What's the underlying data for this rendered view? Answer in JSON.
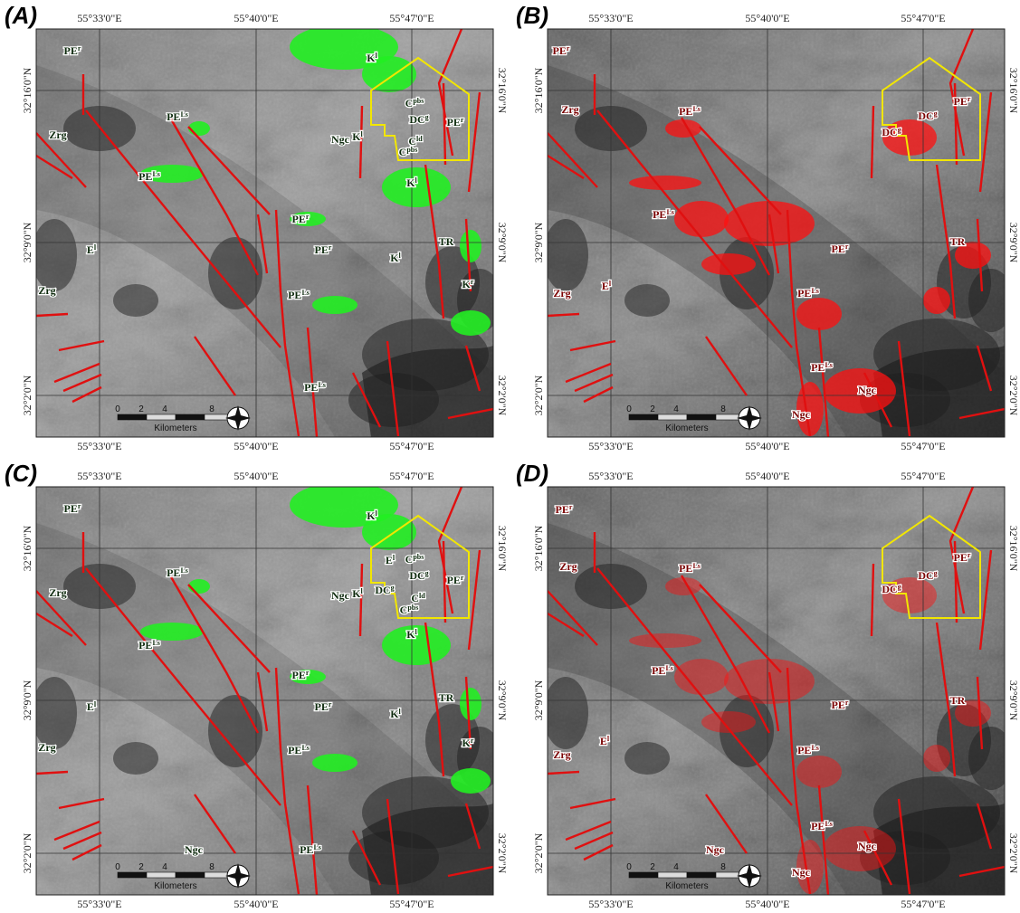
{
  "coords": {
    "lon": [
      "55°33'0\"E",
      "55°40'0\"E",
      "55°47'0\"E"
    ],
    "lat": [
      "32°16'0\"N",
      "32°9'0\"N",
      "32°2'0\"N"
    ]
  },
  "scale": {
    "ticks": [
      "0",
      "2",
      "4",
      "8"
    ],
    "unit": "Kilometers"
  },
  "panels": [
    {
      "label": "(A)",
      "units": [
        {
          "base": "PE",
          "sup": "r"
        },
        {
          "base": "K",
          "sup": "l"
        },
        {
          "base": "C",
          "sup": "pbs"
        },
        {
          "base": "PE",
          "sup": "r"
        },
        {
          "base": "Zrg"
        },
        {
          "base": "PE",
          "sup": "Ls"
        },
        {
          "base": "DC",
          "sup": "g"
        },
        {
          "base": "Ngc"
        },
        {
          "base": "K",
          "sup": "l"
        },
        {
          "base": "C",
          "sup": "ld"
        },
        {
          "base": "C",
          "sup": "pbs"
        },
        {
          "base": "PE",
          "sup": "Ls"
        },
        {
          "base": "K",
          "sup": "l"
        },
        {
          "base": "PE",
          "sup": "r"
        },
        {
          "base": "TR"
        },
        {
          "base": "PE",
          "sup": "r"
        },
        {
          "base": "K",
          "sup": "l"
        },
        {
          "base": "E",
          "sup": "l"
        },
        {
          "base": "K",
          "sup": "r"
        },
        {
          "base": "Zrg"
        },
        {
          "base": "PE",
          "sup": "Ls"
        },
        {
          "base": "PE",
          "sup": "Ls"
        }
      ]
    },
    {
      "label": "(B)",
      "units": [
        {
          "base": "PE",
          "sup": "r"
        },
        {
          "base": "Zrg"
        },
        {
          "base": "PE",
          "sup": "Ls"
        },
        {
          "base": "DC",
          "sup": "g"
        },
        {
          "base": "DC",
          "sup": "g"
        },
        {
          "base": "PE",
          "sup": "r"
        },
        {
          "base": "PE",
          "sup": "Ls"
        },
        {
          "base": "TR"
        },
        {
          "base": "PE",
          "sup": "r"
        },
        {
          "base": "E",
          "sup": "l"
        },
        {
          "base": "Zrg"
        },
        {
          "base": "PE",
          "sup": "Ls"
        },
        {
          "base": "PE",
          "sup": "Ls"
        },
        {
          "base": "Ngc"
        },
        {
          "base": "Ngc"
        }
      ]
    },
    {
      "label": "(C)",
      "units": [
        {
          "base": "PE",
          "sup": "r"
        },
        {
          "base": "K",
          "sup": "l"
        },
        {
          "base": "C",
          "sup": "pbs"
        },
        {
          "base": "PE",
          "sup": "r"
        },
        {
          "base": "E",
          "sup": "l"
        },
        {
          "base": "Zrg"
        },
        {
          "base": "PE",
          "sup": "Ls"
        },
        {
          "base": "DC",
          "sup": "g"
        },
        {
          "base": "DC",
          "sup": "g"
        },
        {
          "base": "Ngc"
        },
        {
          "base": "K",
          "sup": "l"
        },
        {
          "base": "C",
          "sup": "ld"
        },
        {
          "base": "C",
          "sup": "pbs"
        },
        {
          "base": "PE",
          "sup": "Ls"
        },
        {
          "base": "K",
          "sup": "l"
        },
        {
          "base": "PE",
          "sup": "r"
        },
        {
          "base": "TR"
        },
        {
          "base": "PE",
          "sup": "r"
        },
        {
          "base": "K",
          "sup": "l"
        },
        {
          "base": "E",
          "sup": "l"
        },
        {
          "base": "K",
          "sup": "r"
        },
        {
          "base": "Zrg"
        },
        {
          "base": "PE",
          "sup": "Ls"
        },
        {
          "base": "PE",
          "sup": "Ls"
        },
        {
          "base": "Ngc"
        }
      ]
    },
    {
      "label": "(D)",
      "units": [
        {
          "base": "PE",
          "sup": "r"
        },
        {
          "base": "Zrg"
        },
        {
          "base": "PE",
          "sup": "Ls"
        },
        {
          "base": "DC",
          "sup": "g"
        },
        {
          "base": "DC",
          "sup": "g"
        },
        {
          "base": "PE",
          "sup": "r"
        },
        {
          "base": "PE",
          "sup": "Ls"
        },
        {
          "base": "TR"
        },
        {
          "base": "PE",
          "sup": "r"
        },
        {
          "base": "E",
          "sup": "l"
        },
        {
          "base": "Zrg"
        },
        {
          "base": "PE",
          "sup": "Ls"
        },
        {
          "base": "PE",
          "sup": "Ls"
        },
        {
          "base": "Ngc"
        },
        {
          "base": "Ngc"
        },
        {
          "base": "Ngc"
        }
      ]
    }
  ]
}
